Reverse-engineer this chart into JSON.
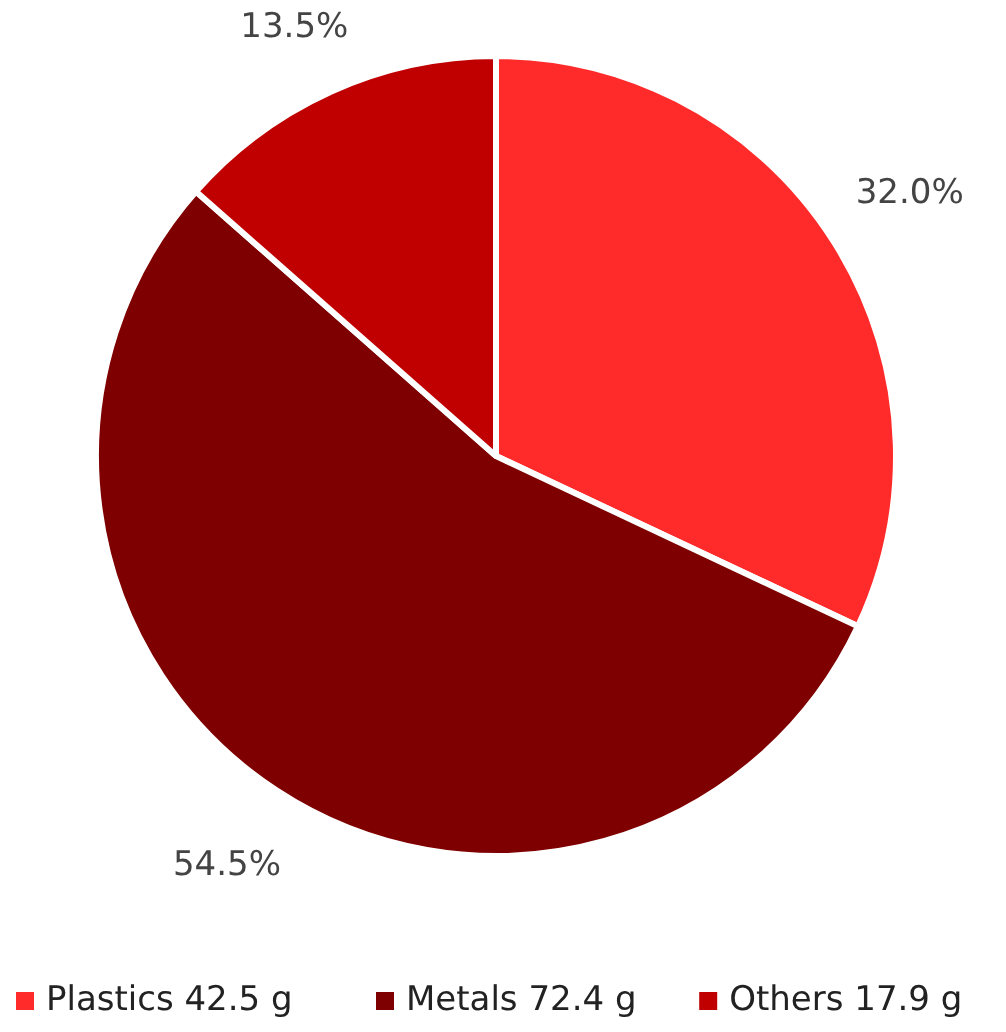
{
  "chart_data": {
    "type": "pie",
    "categories": [
      "Plastics 42.5 g",
      "Metals 72.4 g",
      "Others 17.9 g"
    ],
    "values": [
      32.0,
      54.5,
      13.5
    ],
    "value_labels": [
      "32.0%",
      "54.5%",
      "13.5%"
    ],
    "colors": [
      "#ff2a2a",
      "#7f0000",
      "#c00000"
    ],
    "legend": "bottom"
  }
}
